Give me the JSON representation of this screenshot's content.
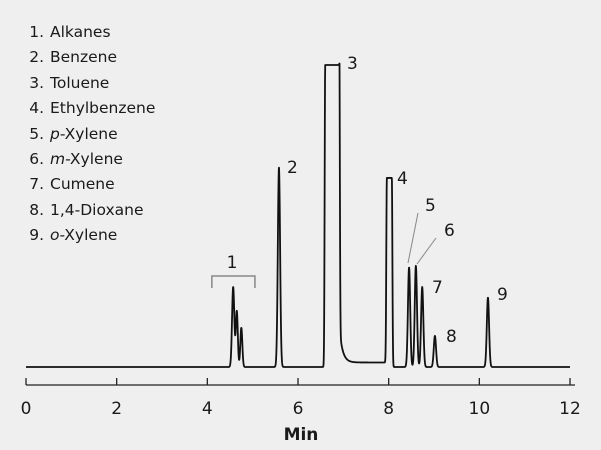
{
  "chart_data": {
    "type": "line",
    "title": "",
    "xlabel": "Min",
    "ylabel": "",
    "xlim": [
      0,
      12
    ],
    "xticks": [
      0,
      2,
      4,
      6,
      8,
      10,
      12
    ],
    "grid": false,
    "trace_color": "#111111",
    "background": "#efefef",
    "legend_position": "top-left",
    "legend": [
      {
        "n": "1.",
        "prefix": "",
        "name": "Alkanes"
      },
      {
        "n": "2.",
        "prefix": "",
        "name": "Benzene"
      },
      {
        "n": "3.",
        "prefix": "",
        "name": "Toluene"
      },
      {
        "n": "4.",
        "prefix": "",
        "name": "Ethylbenzene"
      },
      {
        "n": "5.",
        "prefix": "p",
        "name": "-Xylene"
      },
      {
        "n": "6.",
        "prefix": "m",
        "name": "-Xylene"
      },
      {
        "n": "7.",
        "prefix": "",
        "name": "Cumene"
      },
      {
        "n": "8.",
        "prefix": "",
        "name": "1,4-Dioxane"
      },
      {
        "n": "9.",
        "prefix": "o",
        "name": "-Xylene"
      }
    ],
    "peaks": [
      {
        "label": "1",
        "rt": [
          4.57,
          4.65,
          4.75
        ],
        "height": [
          26.5,
          18.5,
          13
        ],
        "range": [
          4.1,
          5.05
        ]
      },
      {
        "label": "2",
        "rt": [
          5.58
        ],
        "height": [
          66
        ]
      },
      {
        "label": "3",
        "rt": [
          6.75
        ],
        "height": [
          100
        ],
        "flat_top": [
          6.6,
          6.91
        ]
      },
      {
        "label": "4",
        "rt": [
          8.02
        ],
        "height": [
          62.6
        ],
        "flat_top": [
          7.96,
          8.07
        ]
      },
      {
        "label": "5",
        "rt": [
          8.45
        ],
        "height": [
          33
        ]
      },
      {
        "label": "6",
        "rt": [
          8.6
        ],
        "height": [
          33.5
        ]
      },
      {
        "label": "7",
        "rt": [
          8.74
        ],
        "height": [
          26.5
        ]
      },
      {
        "label": "8",
        "rt": [
          9.02
        ],
        "height": [
          10.3
        ]
      },
      {
        "label": "9",
        "rt": [
          10.19
        ],
        "height": [
          23
        ]
      }
    ]
  }
}
